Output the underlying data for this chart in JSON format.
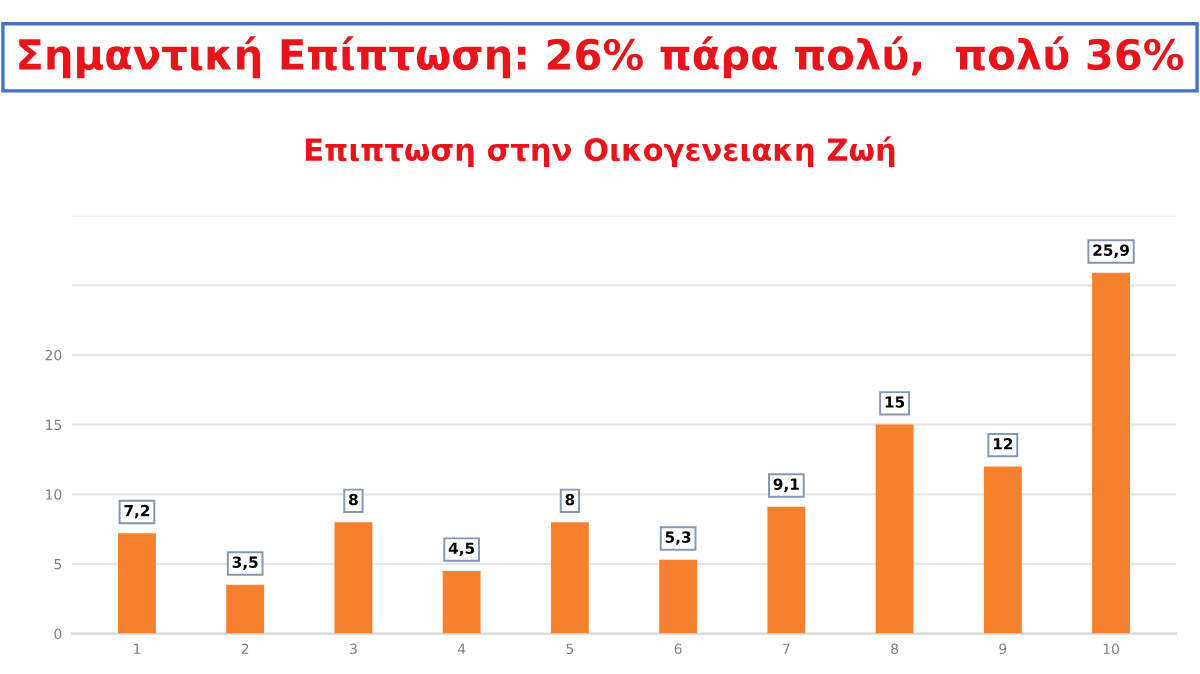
{
  "chart_data": {
    "type": "bar",
    "title": "Σημαντική Επίπτωση: 26% πάρα πολύ,  πολύ 36%",
    "subtitle": "Επιπτωση στην Οικογενειακη Ζωή",
    "categories": [
      "1",
      "2",
      "3",
      "4",
      "5",
      "6",
      "7",
      "8",
      "9",
      "10"
    ],
    "values": [
      7.2,
      3.5,
      8,
      4.5,
      8,
      5.3,
      9.1,
      15,
      12,
      25.9
    ],
    "value_labels": [
      "7,2",
      "3,5",
      "8",
      "4,5",
      "8",
      "5,3",
      "9,1",
      "15",
      "12",
      "25,9"
    ],
    "color": "#f5802d",
    "ylim": [
      0,
      30
    ],
    "yticks": [
      0,
      5,
      10,
      15,
      20,
      {
        "value": 25,
        "label": null
      },
      {
        "value": 30,
        "label": null
      }
    ],
    "grid": "y"
  }
}
